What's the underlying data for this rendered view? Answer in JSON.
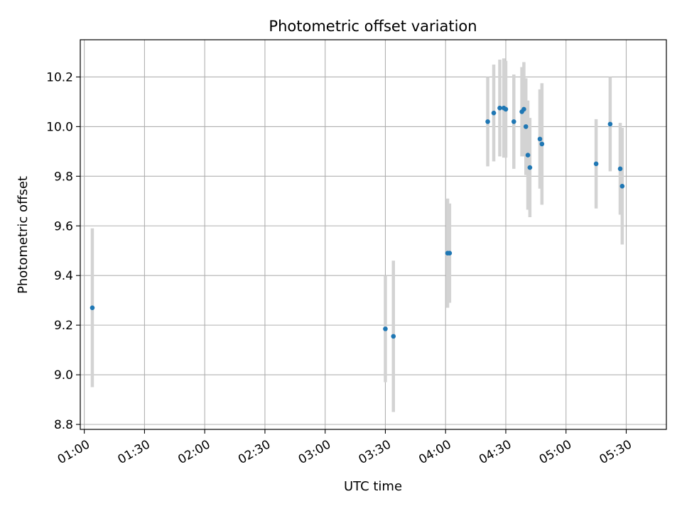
{
  "chart_data": {
    "type": "scatter",
    "title": "Photometric offset variation",
    "xlabel": "UTC time",
    "ylabel": "Photometric offset",
    "x_type": "time",
    "xlim": [
      "00:58",
      "05:50"
    ],
    "ylim": [
      8.78,
      10.35
    ],
    "x_ticks": [
      "01:00",
      "01:30",
      "02:00",
      "02:30",
      "03:00",
      "03:30",
      "04:00",
      "04:30",
      "05:00",
      "05:30"
    ],
    "y_ticks": [
      8.8,
      9.0,
      9.2,
      9.4,
      9.6,
      9.8,
      10.0,
      10.2
    ],
    "grid": true,
    "point_color": "#1f77b4",
    "errorbar_color": "#d3d3d3",
    "series": [
      {
        "points": [
          {
            "x": "01:04",
            "y": 9.27,
            "err": 0.32
          },
          {
            "x": "03:30",
            "y": 9.185,
            "err": 0.215
          },
          {
            "x": "03:34",
            "y": 9.155,
            "err": 0.305
          },
          {
            "x": "04:01",
            "y": 9.49,
            "err": 0.22
          },
          {
            "x": "04:02",
            "y": 9.49,
            "err": 0.2
          },
          {
            "x": "04:21",
            "y": 10.02,
            "err": 0.18
          },
          {
            "x": "04:24",
            "y": 10.055,
            "err": 0.195
          },
          {
            "x": "04:27",
            "y": 10.075,
            "err": 0.195
          },
          {
            "x": "04:29",
            "y": 10.075,
            "err": 0.2
          },
          {
            "x": "04:30",
            "y": 10.07,
            "err": 0.195
          },
          {
            "x": "04:34",
            "y": 10.02,
            "err": 0.19
          },
          {
            "x": "04:38",
            "y": 10.06,
            "err": 0.18
          },
          {
            "x": "04:39",
            "y": 10.07,
            "err": 0.19
          },
          {
            "x": "04:40",
            "y": 10.0,
            "err": 0.195
          },
          {
            "x": "04:41",
            "y": 9.885,
            "err": 0.22
          },
          {
            "x": "04:42",
            "y": 9.835,
            "err": 0.2
          },
          {
            "x": "04:47",
            "y": 9.95,
            "err": 0.2
          },
          {
            "x": "04:48",
            "y": 9.93,
            "err": 0.245
          },
          {
            "x": "05:15",
            "y": 9.85,
            "err": 0.18
          },
          {
            "x": "05:22",
            "y": 10.01,
            "err": 0.19
          },
          {
            "x": "05:27",
            "y": 9.83,
            "err": 0.185
          },
          {
            "x": "05:28",
            "y": 9.76,
            "err": 0.235
          }
        ]
      }
    ]
  }
}
